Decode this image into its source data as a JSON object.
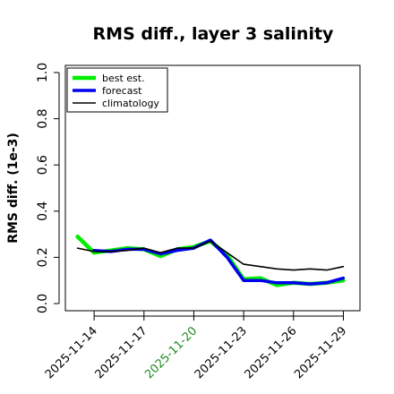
{
  "chart_data": {
    "type": "line",
    "title": "RMS diff., layer 3 salinity",
    "xlabel": "",
    "ylabel": "RMS diff. (1e-3)",
    "ylim": [
      0.0,
      1.0
    ],
    "yticks": [
      0.0,
      0.2,
      0.4,
      0.6,
      0.8,
      1.0
    ],
    "ytick_labels": [
      "0.0",
      "0.2",
      "0.4",
      "0.6",
      "0.8",
      "1.0"
    ],
    "xlim": [
      "2025-11-12",
      "2025-11-30"
    ],
    "xticks": [
      "2025-11-14",
      "2025-11-17",
      "2025-11-20",
      "2025-11-23",
      "2025-11-26",
      "2025-11-29"
    ],
    "xtick_labels": [
      "2025-11-14",
      "2025-11-17",
      "2025-11-20",
      "2025-11-23",
      "2025-11-26",
      "2025-11-29"
    ],
    "highlighted_xtick": "2025-11-20",
    "highlight_color": "#228b22",
    "legend_position": "top-left",
    "grid": false,
    "x": [
      "2025-11-13",
      "2025-11-14",
      "2025-11-15",
      "2025-11-16",
      "2025-11-17",
      "2025-11-18",
      "2025-11-19",
      "2025-11-20",
      "2025-11-21",
      "2025-11-22",
      "2025-11-23",
      "2025-11-24",
      "2025-11-25",
      "2025-11-26",
      "2025-11-27",
      "2025-11-28",
      "2025-11-29"
    ],
    "series": [
      {
        "name": "best est.",
        "color": "#00ee00",
        "values": [
          0.29,
          0.22,
          0.23,
          0.24,
          0.235,
          0.205,
          0.235,
          0.245,
          0.27,
          0.21,
          0.105,
          0.11,
          0.08,
          0.09,
          0.085,
          0.09,
          0.1
        ]
      },
      {
        "name": "forecast",
        "color": "#0000ee",
        "values": [
          null,
          0.23,
          0.225,
          0.235,
          0.235,
          0.215,
          0.23,
          0.24,
          0.275,
          0.2,
          0.1,
          0.1,
          0.09,
          0.09,
          0.085,
          0.09,
          0.11
        ]
      },
      {
        "name": "climatology",
        "color": "#000000",
        "values": [
          0.24,
          0.225,
          0.225,
          0.23,
          0.24,
          0.22,
          0.24,
          0.24,
          0.27,
          0.22,
          0.17,
          0.16,
          0.15,
          0.145,
          0.15,
          0.145,
          0.16
        ]
      }
    ]
  }
}
